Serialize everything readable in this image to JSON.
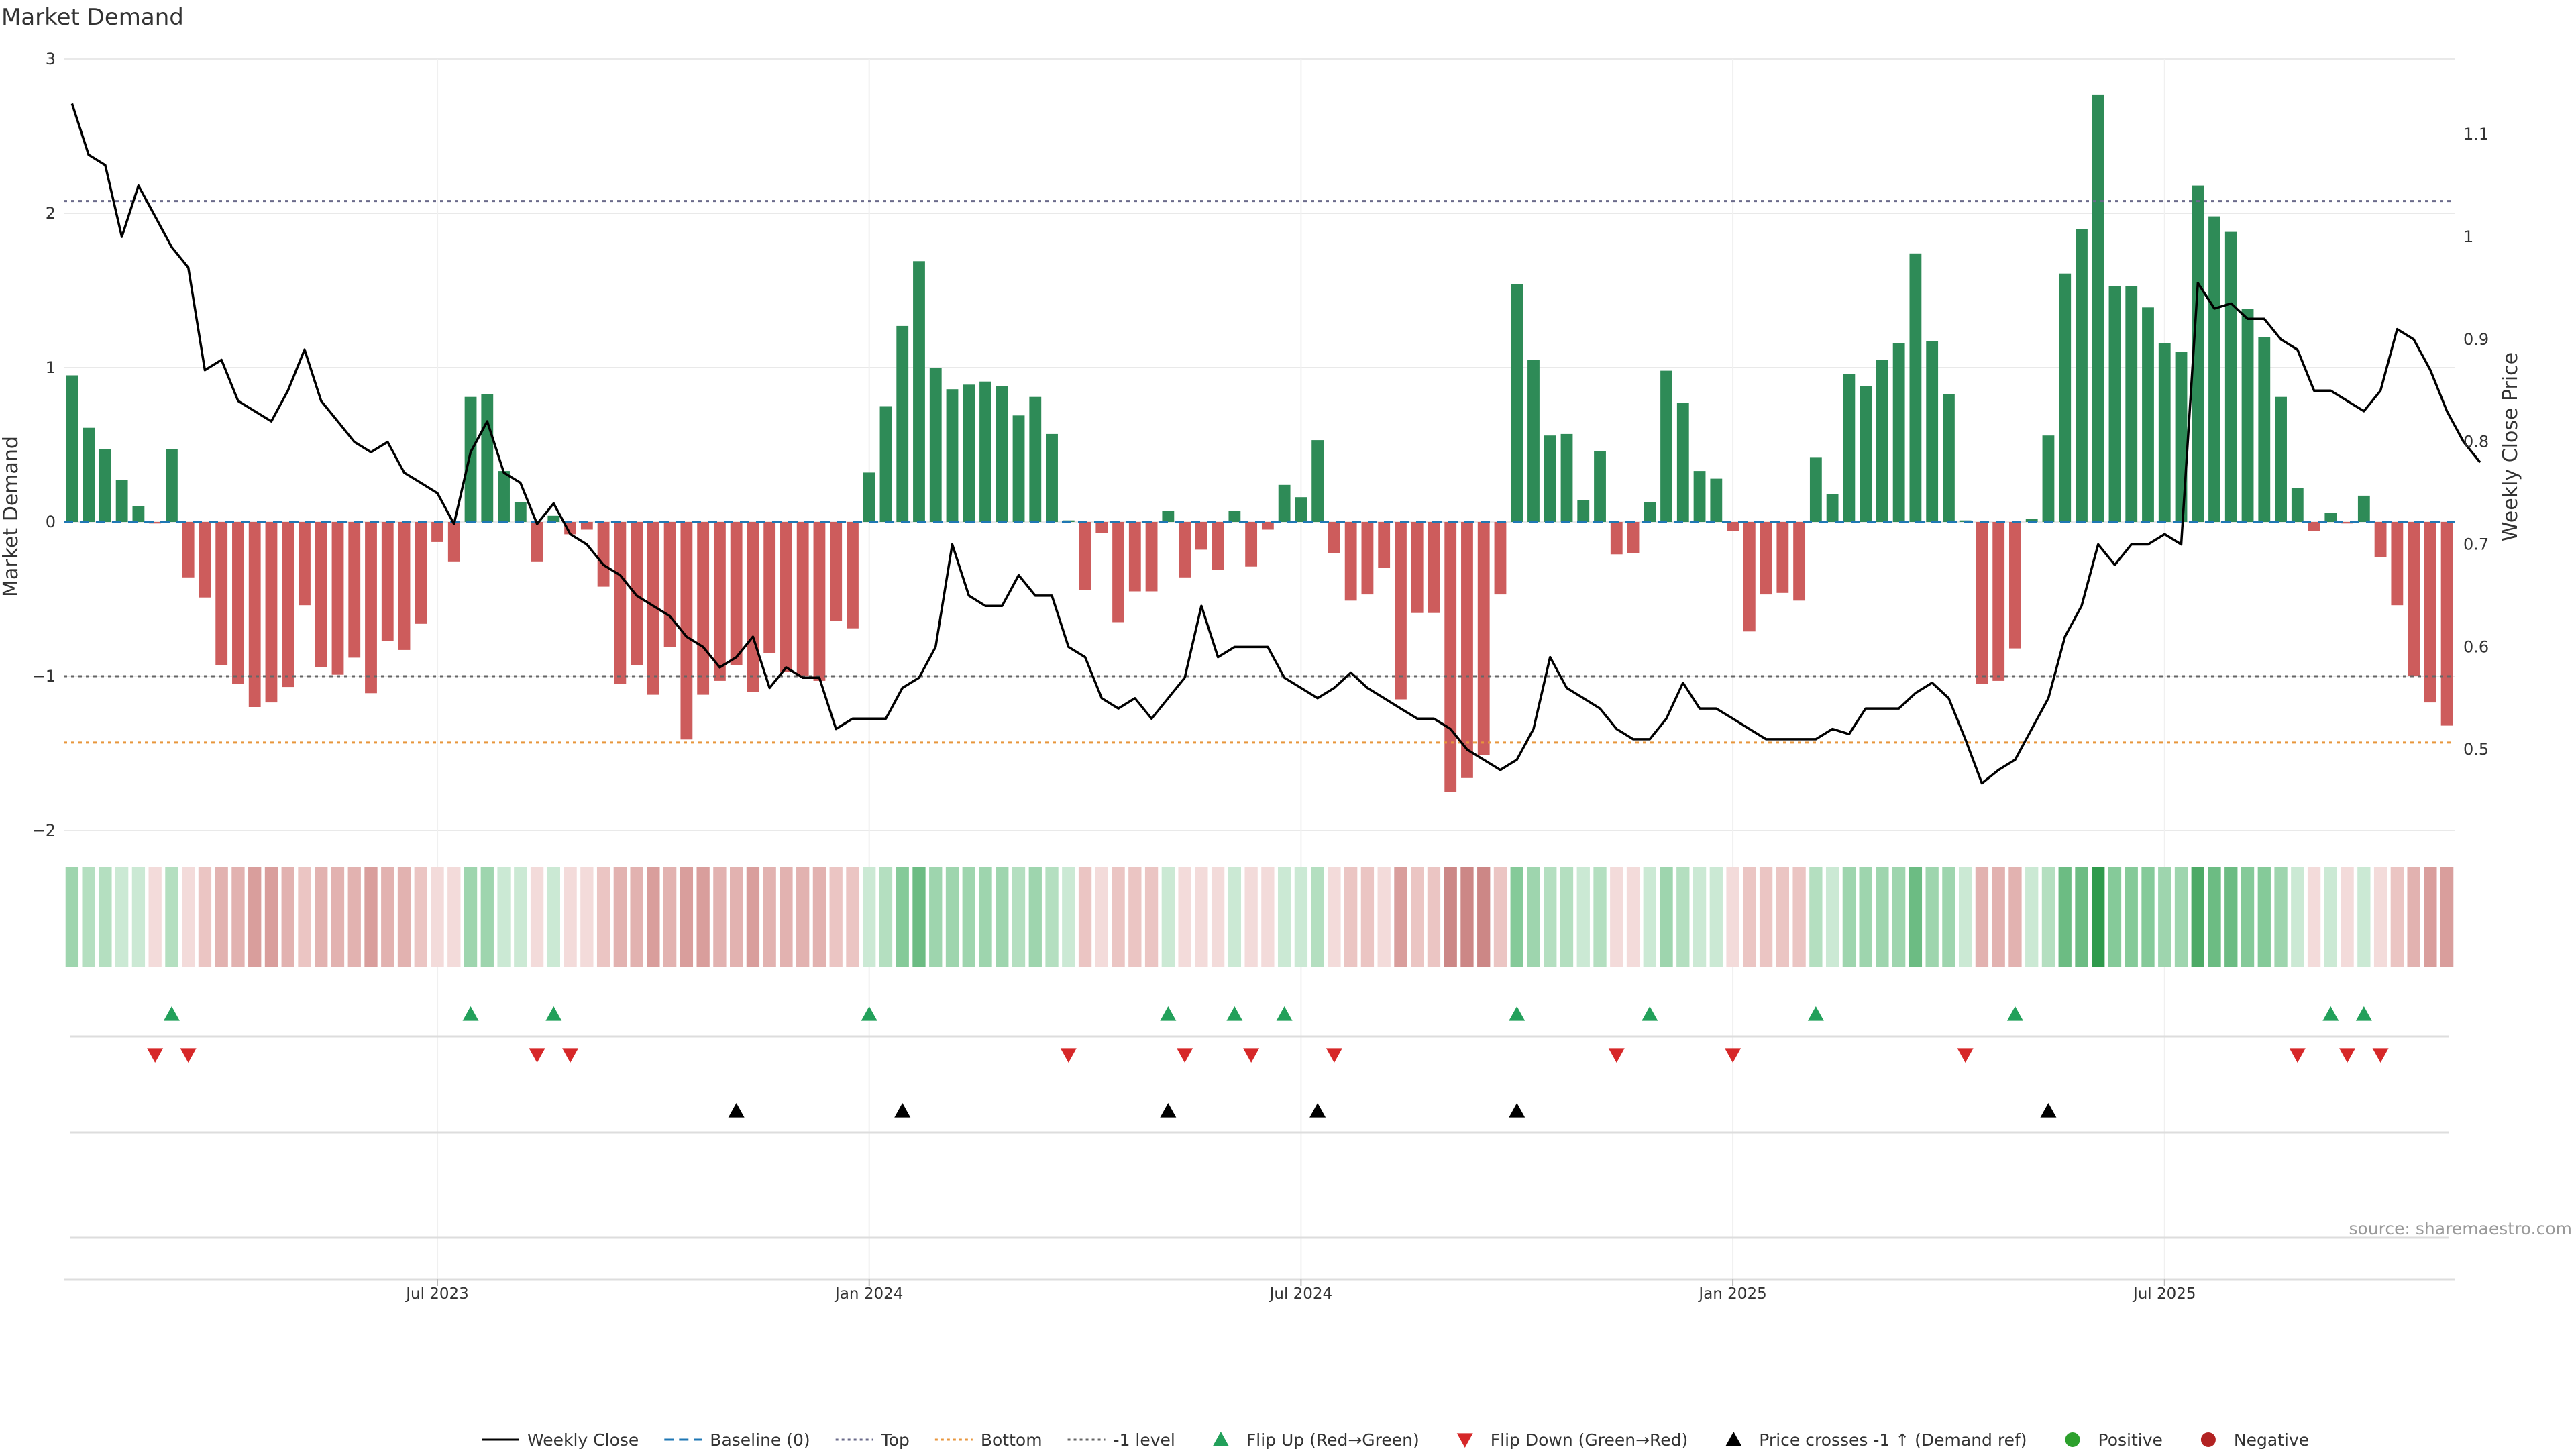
{
  "title": "Market Demand",
  "source": "source: sharemaestro.com",
  "colors": {
    "positive": "#2e8b57",
    "negative": "#cd5c5c",
    "price_line": "#000000",
    "baseline": "#1f77b4",
    "top": "#6a6a8a",
    "bottom": "#e8963c",
    "minus1": "#666666",
    "flip_up": "#22a05a",
    "flip_down": "#d62728",
    "cross": "#000000",
    "positive_dot": "#2ca02c",
    "negative_dot": "#b22222",
    "grid": "#e9e9e9"
  },
  "legend": [
    {
      "label": "Weekly Close",
      "kind": "line"
    },
    {
      "label": "Baseline (0)",
      "kind": "dash"
    },
    {
      "label": "Top",
      "kind": "dot-top"
    },
    {
      "label": "Bottom",
      "kind": "dot-bottom"
    },
    {
      "label": "-1 level",
      "kind": "dot-minus1"
    },
    {
      "label": "Flip Up (Red→Green)",
      "kind": "tri-up"
    },
    {
      "label": "Flip Down (Green→Red)",
      "kind": "tri-down"
    },
    {
      "label": "Price crosses -1 ↑ (Demand ref)",
      "kind": "tri-cross"
    },
    {
      "label": "Positive",
      "kind": "dot-pos"
    },
    {
      "label": "Negative",
      "kind": "dot-neg"
    }
  ],
  "chart_data": {
    "type": "bar",
    "frequency": "weekly",
    "start_date": "2023-03-03",
    "ylabel_left": "Market Demand",
    "ylabel_right": "Weekly Close Price",
    "ylim_left": [
      -2.2,
      3.0
    ],
    "yticks_left": [
      {
        "value": 3,
        "label": "3"
      },
      {
        "value": 2,
        "label": "2"
      },
      {
        "value": 1,
        "label": "1"
      },
      {
        "value": 0,
        "label": "0"
      },
      {
        "value": -1,
        "label": "−1"
      },
      {
        "value": -2,
        "label": "−2"
      }
    ],
    "ylim_right": [
      0.4144,
      1.1741
    ],
    "yticks_right": [
      {
        "value": 1.1,
        "label": "1.1"
      },
      {
        "value": 1.0,
        "label": "1"
      },
      {
        "value": 0.9,
        "label": "0.9"
      },
      {
        "value": 0.8,
        "label": "0.8"
      },
      {
        "value": 0.7,
        "label": "0.7"
      },
      {
        "value": 0.6,
        "label": "0.6"
      },
      {
        "value": 0.5,
        "label": "0.5"
      }
    ],
    "xticks": [
      {
        "week": 22,
        "label": "Jul 2023"
      },
      {
        "week": 48,
        "label": "Jan 2024"
      },
      {
        "week": 74,
        "label": "Jul 2024"
      },
      {
        "week": 100,
        "label": "Jan 2025"
      },
      {
        "week": 126,
        "label": "Jul 2025"
      }
    ],
    "reference_lines": {
      "top": 2.08,
      "baseline": 0,
      "minus1": -1,
      "bottom": -1.43
    },
    "demand": [
      0.95,
      0.61,
      0.47,
      0.27,
      0.1,
      -0.01,
      0.47,
      -0.36,
      -0.49,
      -0.93,
      -1.05,
      -1.2,
      -1.17,
      -1.07,
      -0.54,
      -0.94,
      -0.99,
      -0.88,
      -1.11,
      -0.77,
      -0.83,
      -0.66,
      -0.13,
      -0.26,
      0.81,
      0.83,
      0.33,
      0.13,
      -0.26,
      0.04,
      -0.08,
      -0.05,
      -0.42,
      -1.05,
      -0.93,
      -1.12,
      -0.81,
      -1.41,
      -1.12,
      -1.03,
      -0.93,
      -1.1,
      -0.85,
      -0.97,
      -1.0,
      -1.03,
      -0.64,
      -0.69,
      0.32,
      0.75,
      1.27,
      1.69,
      1.0,
      0.86,
      0.89,
      0.91,
      0.88,
      0.69,
      0.81,
      0.57,
      0.01,
      -0.44,
      -0.07,
      -0.65,
      -0.45,
      -0.45,
      0.07,
      -0.36,
      -0.18,
      -0.31,
      0.07,
      -0.29,
      -0.05,
      0.24,
      0.16,
      0.53,
      -0.2,
      -0.51,
      -0.47,
      -0.3,
      -1.15,
      -0.59,
      -0.59,
      -1.75,
      -1.66,
      -1.51,
      -0.47,
      1.54,
      1.05,
      0.56,
      0.57,
      0.14,
      0.46,
      -0.21,
      -0.2,
      0.13,
      0.98,
      0.77,
      0.33,
      0.28,
      -0.06,
      -0.71,
      -0.47,
      -0.46,
      -0.51,
      0.42,
      0.18,
      0.96,
      0.88,
      1.05,
      1.16,
      1.74,
      1.17,
      0.83,
      0.01,
      -1.05,
      -1.03,
      -0.82,
      0.02,
      0.56,
      1.61,
      1.9,
      2.77,
      1.53,
      1.53,
      1.39,
      1.16,
      1.1,
      2.18,
      1.98,
      1.88,
      1.38,
      1.2,
      0.81,
      0.22,
      -0.06,
      0.06,
      -0.01,
      0.17,
      -0.23,
      -0.54,
      -1.0,
      -1.17,
      -1.32
    ],
    "close": [
      1.13,
      1.08,
      1.07,
      1.0,
      1.05,
      1.02,
      0.99,
      0.97,
      0.87,
      0.88,
      0.84,
      0.83,
      0.82,
      0.85,
      0.89,
      0.84,
      0.82,
      0.8,
      0.79,
      0.8,
      0.77,
      0.76,
      0.75,
      0.72,
      0.79,
      0.82,
      0.77,
      0.76,
      0.72,
      0.74,
      0.71,
      0.7,
      0.68,
      0.67,
      0.65,
      0.64,
      0.63,
      0.61,
      0.6,
      0.58,
      0.59,
      0.61,
      0.56,
      0.58,
      0.57,
      0.57,
      0.52,
      0.53,
      0.53,
      0.53,
      0.56,
      0.57,
      0.6,
      0.7,
      0.65,
      0.64,
      0.64,
      0.67,
      0.65,
      0.65,
      0.6,
      0.59,
      0.55,
      0.54,
      0.55,
      0.53,
      0.55,
      0.57,
      0.64,
      0.59,
      0.6,
      0.6,
      0.6,
      0.57,
      0.56,
      0.55,
      0.56,
      0.575,
      0.56,
      0.55,
      0.54,
      0.53,
      0.53,
      0.52,
      0.5,
      0.49,
      0.48,
      0.49,
      0.52,
      0.59,
      0.56,
      0.55,
      0.54,
      0.52,
      0.51,
      0.51,
      0.53,
      0.565,
      0.54,
      0.54,
      0.53,
      0.52,
      0.51,
      0.51,
      0.51,
      0.51,
      0.52,
      0.515,
      0.54,
      0.54,
      0.54,
      0.555,
      0.565,
      0.55,
      0.51,
      0.467,
      0.48,
      0.49,
      0.52,
      0.55,
      0.61,
      0.64,
      0.7,
      0.68,
      0.7,
      0.7,
      0.71,
      0.7,
      0.955,
      0.93,
      0.935,
      0.92,
      0.92,
      0.9,
      0.89,
      0.85,
      0.85,
      0.84,
      0.83,
      0.85,
      0.91,
      0.9,
      0.87,
      0.83,
      0.8,
      0.78
    ]
  },
  "strip": {
    "positive_colors": [
      "#cbe9d4",
      "#b4dfc0",
      "#9ed5ae",
      "#85ca99",
      "#6cbc83",
      "#4daa66",
      "#2f9a4c"
    ],
    "negative_colors": [
      "#f3dbda",
      "#ebc5c3",
      "#e2b2b0",
      "#d99e9c",
      "#cc8786"
    ]
  },
  "markers": {
    "flip_up": [
      6,
      24,
      29,
      48,
      66,
      70,
      73,
      87,
      95,
      105,
      117,
      136,
      138
    ],
    "flip_down": [
      5,
      7,
      28,
      30,
      60,
      67,
      71,
      76,
      93,
      100,
      114,
      134,
      137,
      139
    ],
    "price_crosses": [
      40,
      50,
      66,
      75,
      87,
      119
    ]
  }
}
